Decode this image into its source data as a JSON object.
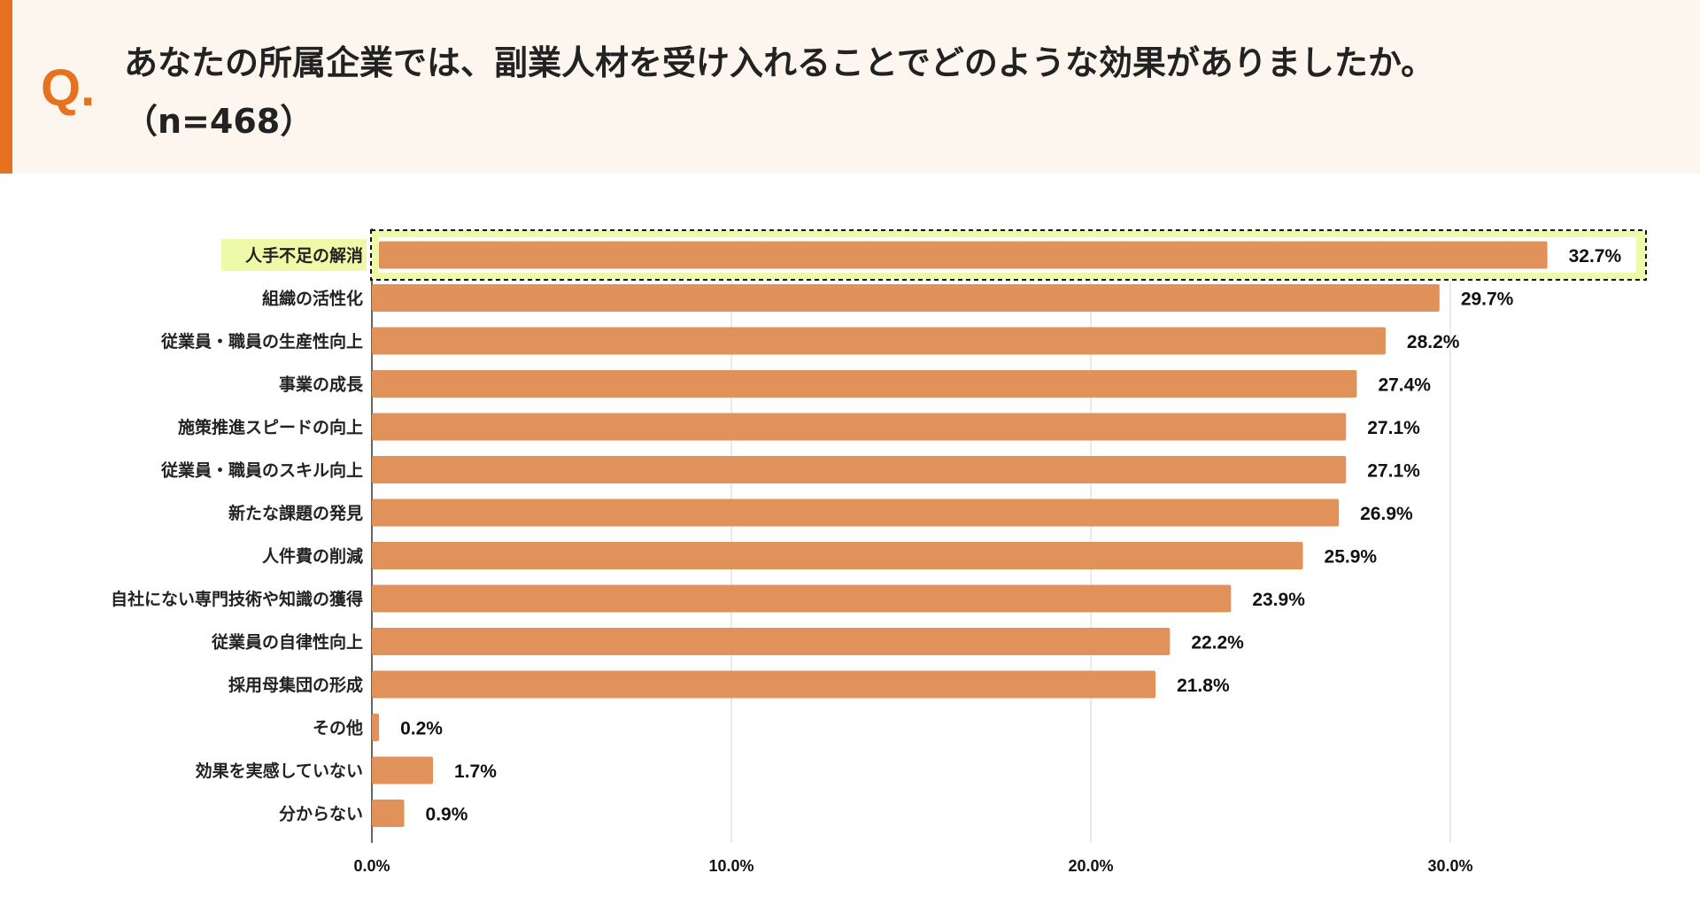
{
  "header": {
    "q_mark": "Q.",
    "title_line1": "あなたの所属企業では、副業人材を受け入れることでどのような効果がありましたか。",
    "title_line2": "（n=468）"
  },
  "colors": {
    "accent": "#e6711f",
    "bar": "#e0925a",
    "highlight": "#eefaa8",
    "header_bg": "#fdf6ee"
  },
  "chart_data": {
    "type": "bar",
    "orientation": "horizontal",
    "categories": [
      "人手不足の解消",
      "組織の活性化",
      "従業員・職員の生産性向上",
      "事業の成長",
      "施策推進スピードの向上",
      "従業員・職員のスキル向上",
      "新たな課題の発見",
      "人件費の削減",
      "自社にない専門技術や知識の獲得",
      "従業員の自律性向上",
      "採用母集団の形成",
      "その他",
      "効果を実感していない",
      "分からない"
    ],
    "values": [
      32.7,
      29.7,
      28.2,
      27.4,
      27.1,
      27.1,
      26.9,
      25.9,
      23.9,
      22.2,
      21.8,
      0.2,
      1.7,
      0.9
    ],
    "value_labels": [
      "32.7%",
      "29.7%",
      "28.2%",
      "27.4%",
      "27.1%",
      "27.1%",
      "26.9%",
      "25.9%",
      "23.9%",
      "22.2%",
      "21.8%",
      "0.2%",
      "1.7%",
      "0.9%"
    ],
    "xlim": [
      0,
      30
    ],
    "xticks": [
      "0.0%",
      "10.0%",
      "20.0%",
      "30.0%"
    ],
    "grid": true,
    "highlighted_category": "人手不足の解消"
  }
}
